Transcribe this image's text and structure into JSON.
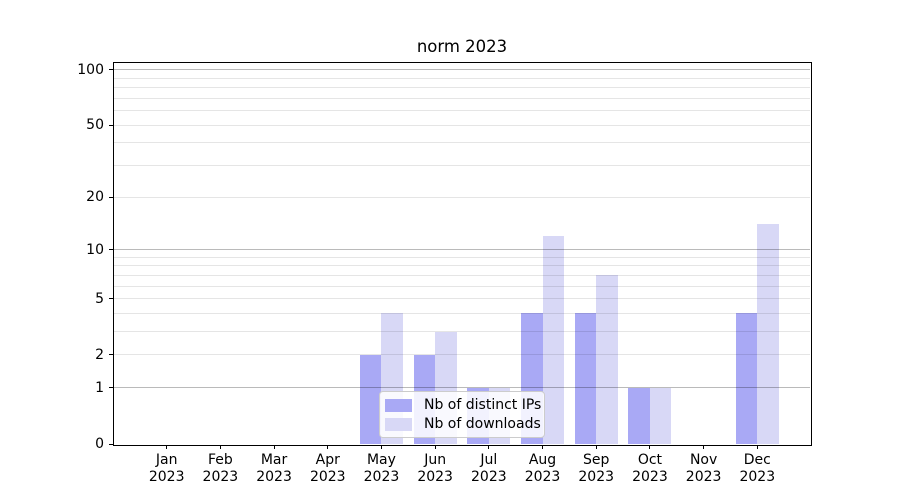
{
  "title": "norm 2023",
  "legend": {
    "position": "lower center",
    "items": [
      {
        "label": "Nb of distinct IPs",
        "color": "#a9a9f5"
      },
      {
        "label": "Nb of downloads",
        "color": "#d8d8f6"
      }
    ]
  },
  "chart_data": {
    "type": "bar",
    "title": "norm 2023",
    "categories": [
      "Jan 2023",
      "Feb 2023",
      "Mar 2023",
      "Apr 2023",
      "May 2023",
      "Jun 2023",
      "Jul 2023",
      "Aug 2023",
      "Sep 2023",
      "Oct 2023",
      "Nov 2023",
      "Dec 2023"
    ],
    "x_tick_line1": [
      "Jan",
      "Feb",
      "Mar",
      "Apr",
      "May",
      "Jun",
      "Jul",
      "Aug",
      "Sep",
      "Oct",
      "Nov",
      "Dec"
    ],
    "x_tick_line2": [
      "2023",
      "2023",
      "2023",
      "2023",
      "2023",
      "2023",
      "2023",
      "2023",
      "2023",
      "2023",
      "2023",
      "2023"
    ],
    "series": [
      {
        "name": "Nb of distinct IPs",
        "color": "#a9a9f5",
        "values": [
          0,
          0,
          0,
          0,
          2,
          2,
          1,
          4,
          4,
          1,
          0,
          4
        ]
      },
      {
        "name": "Nb of downloads",
        "color": "#d8d8f6",
        "values": [
          0,
          0,
          0,
          0,
          4,
          3,
          1,
          12,
          7,
          1,
          0,
          14
        ]
      }
    ],
    "xlabel": "",
    "ylabel": "",
    "yscale": "log10(1+v)",
    "ylim": [
      0,
      110
    ],
    "y_tick_labels": [
      "0",
      "1",
      "2",
      "5",
      "10",
      "20",
      "50",
      "100"
    ],
    "y_tick_values": [
      0,
      1,
      2,
      5,
      10,
      20,
      50,
      100
    ],
    "y_major_grid_values": [
      1,
      10,
      100
    ],
    "y_minor_grid_values": [
      2,
      3,
      4,
      5,
      6,
      7,
      8,
      9,
      20,
      30,
      40,
      50,
      60,
      70,
      80,
      90
    ],
    "grid": true,
    "legend_position": "lower center"
  }
}
